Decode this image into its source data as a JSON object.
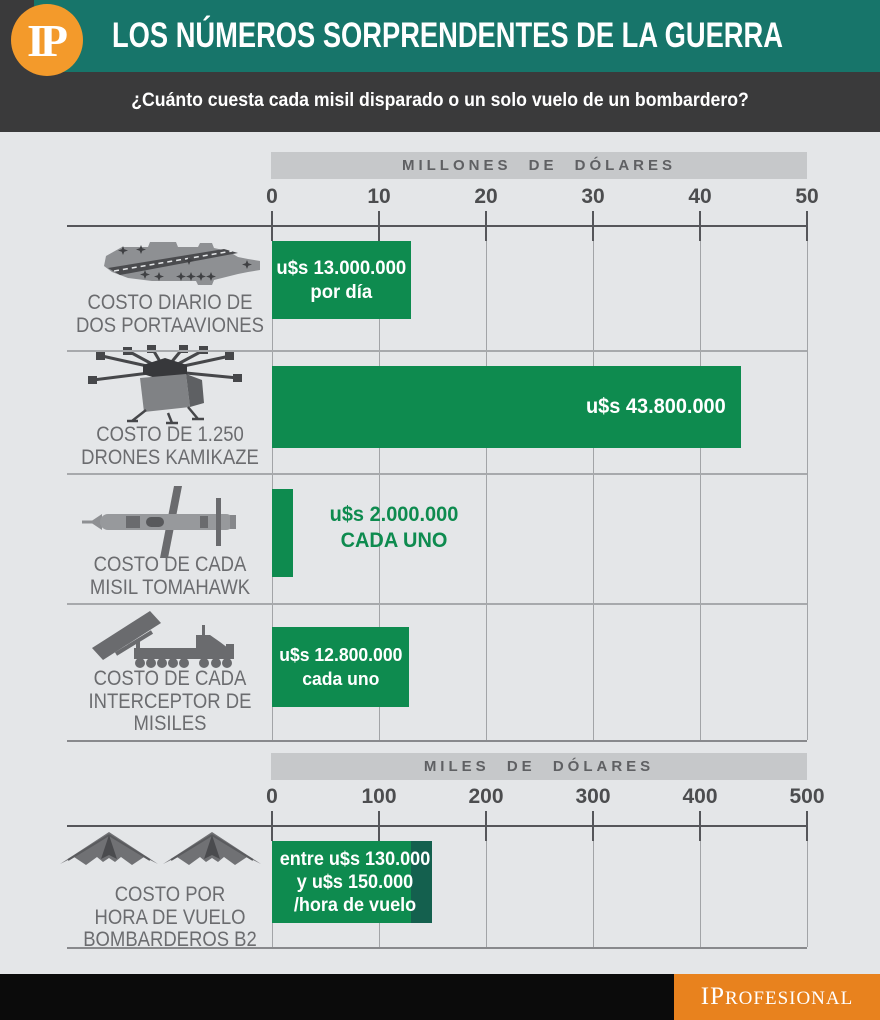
{
  "header": {
    "logo_text": "IP",
    "title": "LOS NÚMEROS SORPRENDENTES DE LA GUERRA",
    "subtitle": "¿Cuánto cuesta cada misil disparado o un solo vuelo de un bombardero?"
  },
  "colors": {
    "banner_teal": "#17756A",
    "logo_orange": "#F39A2B",
    "footer_orange": "#E8821E",
    "bar_green": "#0E8B4F",
    "bar_dark_green": "#14604E",
    "header_dark": "#3A3A3B",
    "chart_background": "#E4E6E8"
  },
  "chart_data": [
    {
      "type": "bar",
      "unit_label": "MILLONES DE DÓLARES",
      "axis_ticks": [
        0,
        10,
        20,
        30,
        40,
        50
      ],
      "axis_range": [
        0,
        50
      ],
      "rows": [
        {
          "icon": "aircraft-carrier",
          "label_lines": [
            "COSTO DIARIO DE",
            "DOS PORTAAVIONES"
          ],
          "value": 13,
          "value_lines": [
            "u$s 13.000.000",
            "por día"
          ],
          "value_text_position": "inside"
        },
        {
          "icon": "kamikaze-drone",
          "label_lines": [
            "COSTO DE 1.250",
            "DRONES KAMIKAZE"
          ],
          "value": 43.8,
          "value_lines": [
            "u$s 43.800.000"
          ],
          "value_text_position": "inside-right"
        },
        {
          "icon": "tomahawk-missile",
          "label_lines": [
            "COSTO DE CADA",
            "MISIL TOMAHAWK"
          ],
          "value": 2,
          "value_lines": [
            "u$s 2.000.000",
            "CADA UNO"
          ],
          "value_text_position": "outside-green"
        },
        {
          "icon": "missile-interceptor",
          "label_lines": [
            "COSTO DE CADA",
            "INTERCEPTOR DE MISILES"
          ],
          "value": 12.8,
          "value_lines": [
            "u$s 12.800.000",
            "cada uno"
          ],
          "value_text_position": "inside"
        }
      ]
    },
    {
      "type": "bar",
      "unit_label": "MILES DE DÓLARES",
      "axis_ticks": [
        0,
        100,
        200,
        300,
        400,
        500
      ],
      "axis_range": [
        0,
        500
      ],
      "rows": [
        {
          "icon": "b2-bomber",
          "label_lines": [
            "COSTO POR",
            "HORA DE VUELO",
            "BOMBARDEROS B2"
          ],
          "value_min": 130,
          "value_max": 150,
          "value_lines": [
            "entre u$s 130.000",
            "y u$s 150.000",
            "/hora de vuelo"
          ],
          "value_text_position": "inside"
        }
      ]
    }
  ],
  "footer": {
    "brand_main": "IP",
    "brand_rest": "ROFESIONAL"
  }
}
